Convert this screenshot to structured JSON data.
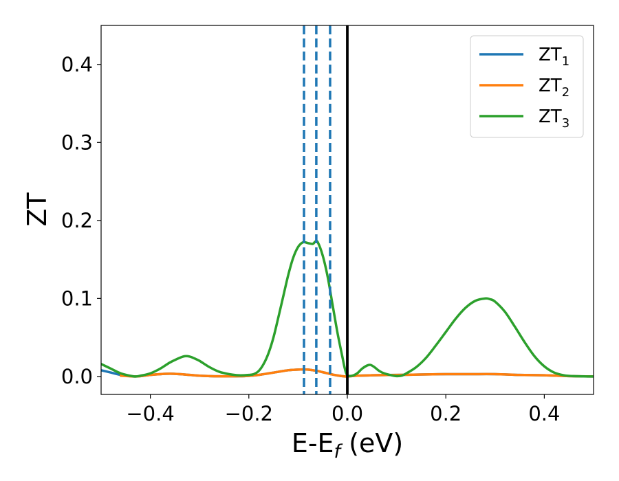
{
  "chart_data": {
    "type": "line",
    "xlabel": "E-E_f (eV)",
    "xlabel_parts": {
      "prefix": "E-E",
      "subscript": "f",
      "suffix": " (eV)"
    },
    "ylabel": "ZT",
    "xlim": [
      -0.5,
      0.5
    ],
    "ylim": [
      -0.023,
      0.45
    ],
    "xticks": [
      -0.4,
      -0.2,
      0.0,
      0.2,
      0.4
    ],
    "xtick_labels": [
      "−0.4",
      "−0.2",
      "0.0",
      "0.2",
      "0.4"
    ],
    "yticks": [
      0.0,
      0.1,
      0.2,
      0.3,
      0.4
    ],
    "ytick_labels": [
      "0.0",
      "0.1",
      "0.2",
      "0.3",
      "0.4"
    ],
    "grid": false,
    "legend_position": "top-right",
    "vlines": [
      {
        "x": 0.0,
        "style": "solid",
        "color": "#000000"
      },
      {
        "x": -0.088,
        "style": "dashed",
        "color": "#1f77b4"
      },
      {
        "x": -0.063,
        "style": "dashed",
        "color": "#1f77b4"
      },
      {
        "x": -0.035,
        "style": "dashed",
        "color": "#1f77b4"
      }
    ],
    "series": [
      {
        "name": "ZT1",
        "label_base": "ZT",
        "label_sub": "1",
        "color": "#1f77b4",
        "x": [
          -0.5,
          -0.48,
          -0.46,
          -0.44,
          -0.43,
          -0.42,
          -0.4,
          -0.38,
          -0.36,
          -0.34,
          -0.32,
          -0.3,
          -0.28,
          -0.26,
          -0.24,
          -0.22,
          -0.2,
          -0.18,
          -0.16,
          -0.14,
          -0.12,
          -0.1,
          -0.09,
          -0.08,
          -0.07,
          -0.06,
          -0.05,
          -0.04,
          -0.03,
          -0.02,
          -0.01,
          0.0,
          0.02,
          0.05,
          0.1,
          0.15,
          0.2,
          0.25,
          0.3,
          0.35,
          0.4,
          0.45,
          0.5
        ],
        "values": [
          0.008,
          0.005,
          0.002,
          0.0003,
          0.0,
          0.0004,
          0.002,
          0.003,
          0.0035,
          0.003,
          0.002,
          0.001,
          0.0005,
          0.0002,
          0.0002,
          0.0003,
          0.0008,
          0.002,
          0.004,
          0.006,
          0.008,
          0.0088,
          0.009,
          0.0088,
          0.008,
          0.007,
          0.0055,
          0.004,
          0.0025,
          0.0013,
          0.0004,
          0.0,
          0.001,
          0.0015,
          0.002,
          0.0025,
          0.003,
          0.003,
          0.003,
          0.002,
          0.0015,
          0.0005,
          0.0
        ]
      },
      {
        "name": "ZT2",
        "label_base": "ZT",
        "label_sub": "2",
        "color": "#ff7f0e",
        "x": [
          -0.46,
          -0.44,
          -0.43,
          -0.42,
          -0.4,
          -0.38,
          -0.36,
          -0.34,
          -0.32,
          -0.3,
          -0.28,
          -0.26,
          -0.24,
          -0.22,
          -0.2,
          -0.18,
          -0.16,
          -0.14,
          -0.12,
          -0.1,
          -0.09,
          -0.08,
          -0.07,
          -0.06,
          -0.05,
          -0.04,
          -0.03,
          -0.02,
          -0.01,
          0.0,
          0.02,
          0.05,
          0.1,
          0.15,
          0.2,
          0.25,
          0.3,
          0.35,
          0.4,
          0.45,
          0.5
        ],
        "values": [
          0.001,
          0.0002,
          0.0,
          0.0004,
          0.002,
          0.003,
          0.0035,
          0.003,
          0.002,
          0.001,
          0.0005,
          0.0002,
          0.0002,
          0.0003,
          0.0008,
          0.002,
          0.004,
          0.006,
          0.008,
          0.0088,
          0.009,
          0.0088,
          0.008,
          0.007,
          0.0055,
          0.004,
          0.0025,
          0.0013,
          0.0004,
          0.0,
          0.001,
          0.0015,
          0.002,
          0.0025,
          0.003,
          0.003,
          0.003,
          0.002,
          0.0015,
          0.0005,
          0.0
        ]
      },
      {
        "name": "ZT3",
        "label_base": "ZT",
        "label_sub": "3",
        "color": "#2ca02c",
        "x": [
          -0.5,
          -0.48,
          -0.46,
          -0.44,
          -0.43,
          -0.42,
          -0.4,
          -0.38,
          -0.36,
          -0.34,
          -0.33,
          -0.32,
          -0.31,
          -0.3,
          -0.28,
          -0.26,
          -0.24,
          -0.22,
          -0.2,
          -0.19,
          -0.18,
          -0.17,
          -0.16,
          -0.15,
          -0.14,
          -0.13,
          -0.12,
          -0.11,
          -0.1,
          -0.09,
          -0.08,
          -0.07,
          -0.065,
          -0.06,
          -0.05,
          -0.04,
          -0.03,
          -0.02,
          -0.01,
          -0.005,
          0.0,
          0.01,
          0.02,
          0.03,
          0.04,
          0.047,
          0.055,
          0.065,
          0.075,
          0.09,
          0.1,
          0.11,
          0.12,
          0.14,
          0.16,
          0.18,
          0.2,
          0.22,
          0.24,
          0.26,
          0.28,
          0.29,
          0.3,
          0.32,
          0.34,
          0.36,
          0.38,
          0.4,
          0.42,
          0.44,
          0.46,
          0.48,
          0.5
        ],
        "values": [
          0.016,
          0.01,
          0.004,
          0.0008,
          0.0,
          0.001,
          0.004,
          0.01,
          0.018,
          0.024,
          0.026,
          0.0255,
          0.023,
          0.02,
          0.012,
          0.006,
          0.003,
          0.0015,
          0.002,
          0.003,
          0.007,
          0.016,
          0.03,
          0.05,
          0.076,
          0.103,
          0.13,
          0.152,
          0.166,
          0.172,
          0.171,
          0.17,
          0.173,
          0.172,
          0.155,
          0.128,
          0.092,
          0.056,
          0.025,
          0.01,
          0.0015,
          0.001,
          0.004,
          0.01,
          0.014,
          0.0148,
          0.012,
          0.007,
          0.004,
          0.0015,
          0.0005,
          0.001,
          0.004,
          0.012,
          0.024,
          0.04,
          0.057,
          0.074,
          0.088,
          0.097,
          0.1,
          0.099,
          0.096,
          0.083,
          0.064,
          0.044,
          0.026,
          0.013,
          0.005,
          0.0015,
          0.0004,
          0.0001,
          0.0
        ]
      }
    ]
  }
}
